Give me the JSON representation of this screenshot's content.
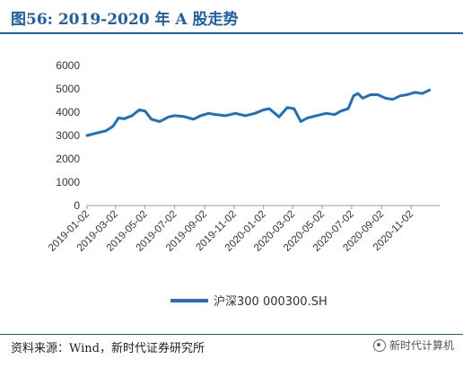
{
  "figure": {
    "title": "图56:   2019-2020 年 A 股走势",
    "source": "资料来源：Wind，新时代证券研究所",
    "watermark": "新时代计算机",
    "watermark_icon": "wechat-icon"
  },
  "chart_data": {
    "type": "line",
    "title": "",
    "xlabel": "",
    "ylabel": "",
    "ylim": [
      0,
      6000
    ],
    "yticks": [
      "0",
      "1000",
      "2000",
      "3000",
      "4000",
      "5000",
      "6000"
    ],
    "xticks": [
      "2019-01-02",
      "2019-03-02",
      "2019-05-02",
      "2019-07-02",
      "2019-09-02",
      "2019-11-02",
      "2020-01-02",
      "2020-03-02",
      "2020-05-02",
      "2020-07-02",
      "2020-09-02",
      "2020-11-02"
    ],
    "grid": false,
    "legend": "bottom",
    "line_color": "#1f6fbf",
    "series": [
      {
        "name": "沪深300 000300.SH",
        "x": [
          "2019-01-02",
          "2019-01-20",
          "2019-02-10",
          "2019-02-25",
          "2019-03-08",
          "2019-03-20",
          "2019-04-05",
          "2019-04-20",
          "2019-05-02",
          "2019-05-15",
          "2019-06-01",
          "2019-06-20",
          "2019-07-02",
          "2019-07-20",
          "2019-08-10",
          "2019-08-25",
          "2019-09-10",
          "2019-09-25",
          "2019-10-15",
          "2019-11-05",
          "2019-11-25",
          "2019-12-15",
          "2020-01-02",
          "2020-01-14",
          "2020-02-03",
          "2020-02-20",
          "2020-03-05",
          "2020-03-19",
          "2020-04-01",
          "2020-04-20",
          "2020-05-10",
          "2020-05-28",
          "2020-06-10",
          "2020-06-25",
          "2020-07-06",
          "2020-07-15",
          "2020-07-25",
          "2020-08-10",
          "2020-08-25",
          "2020-09-10",
          "2020-09-25",
          "2020-10-10",
          "2020-10-25",
          "2020-11-10",
          "2020-11-25",
          "2020-12-10"
        ],
        "y": [
          3000,
          3100,
          3200,
          3400,
          3750,
          3720,
          3850,
          4100,
          4050,
          3700,
          3600,
          3800,
          3850,
          3820,
          3700,
          3850,
          3950,
          3900,
          3850,
          3950,
          3850,
          3950,
          4100,
          4150,
          3800,
          4200,
          4150,
          3600,
          3750,
          3850,
          3950,
          3900,
          4050,
          4150,
          4700,
          4800,
          4600,
          4750,
          4750,
          4600,
          4550,
          4700,
          4750,
          4850,
          4800,
          4950
        ]
      }
    ]
  }
}
